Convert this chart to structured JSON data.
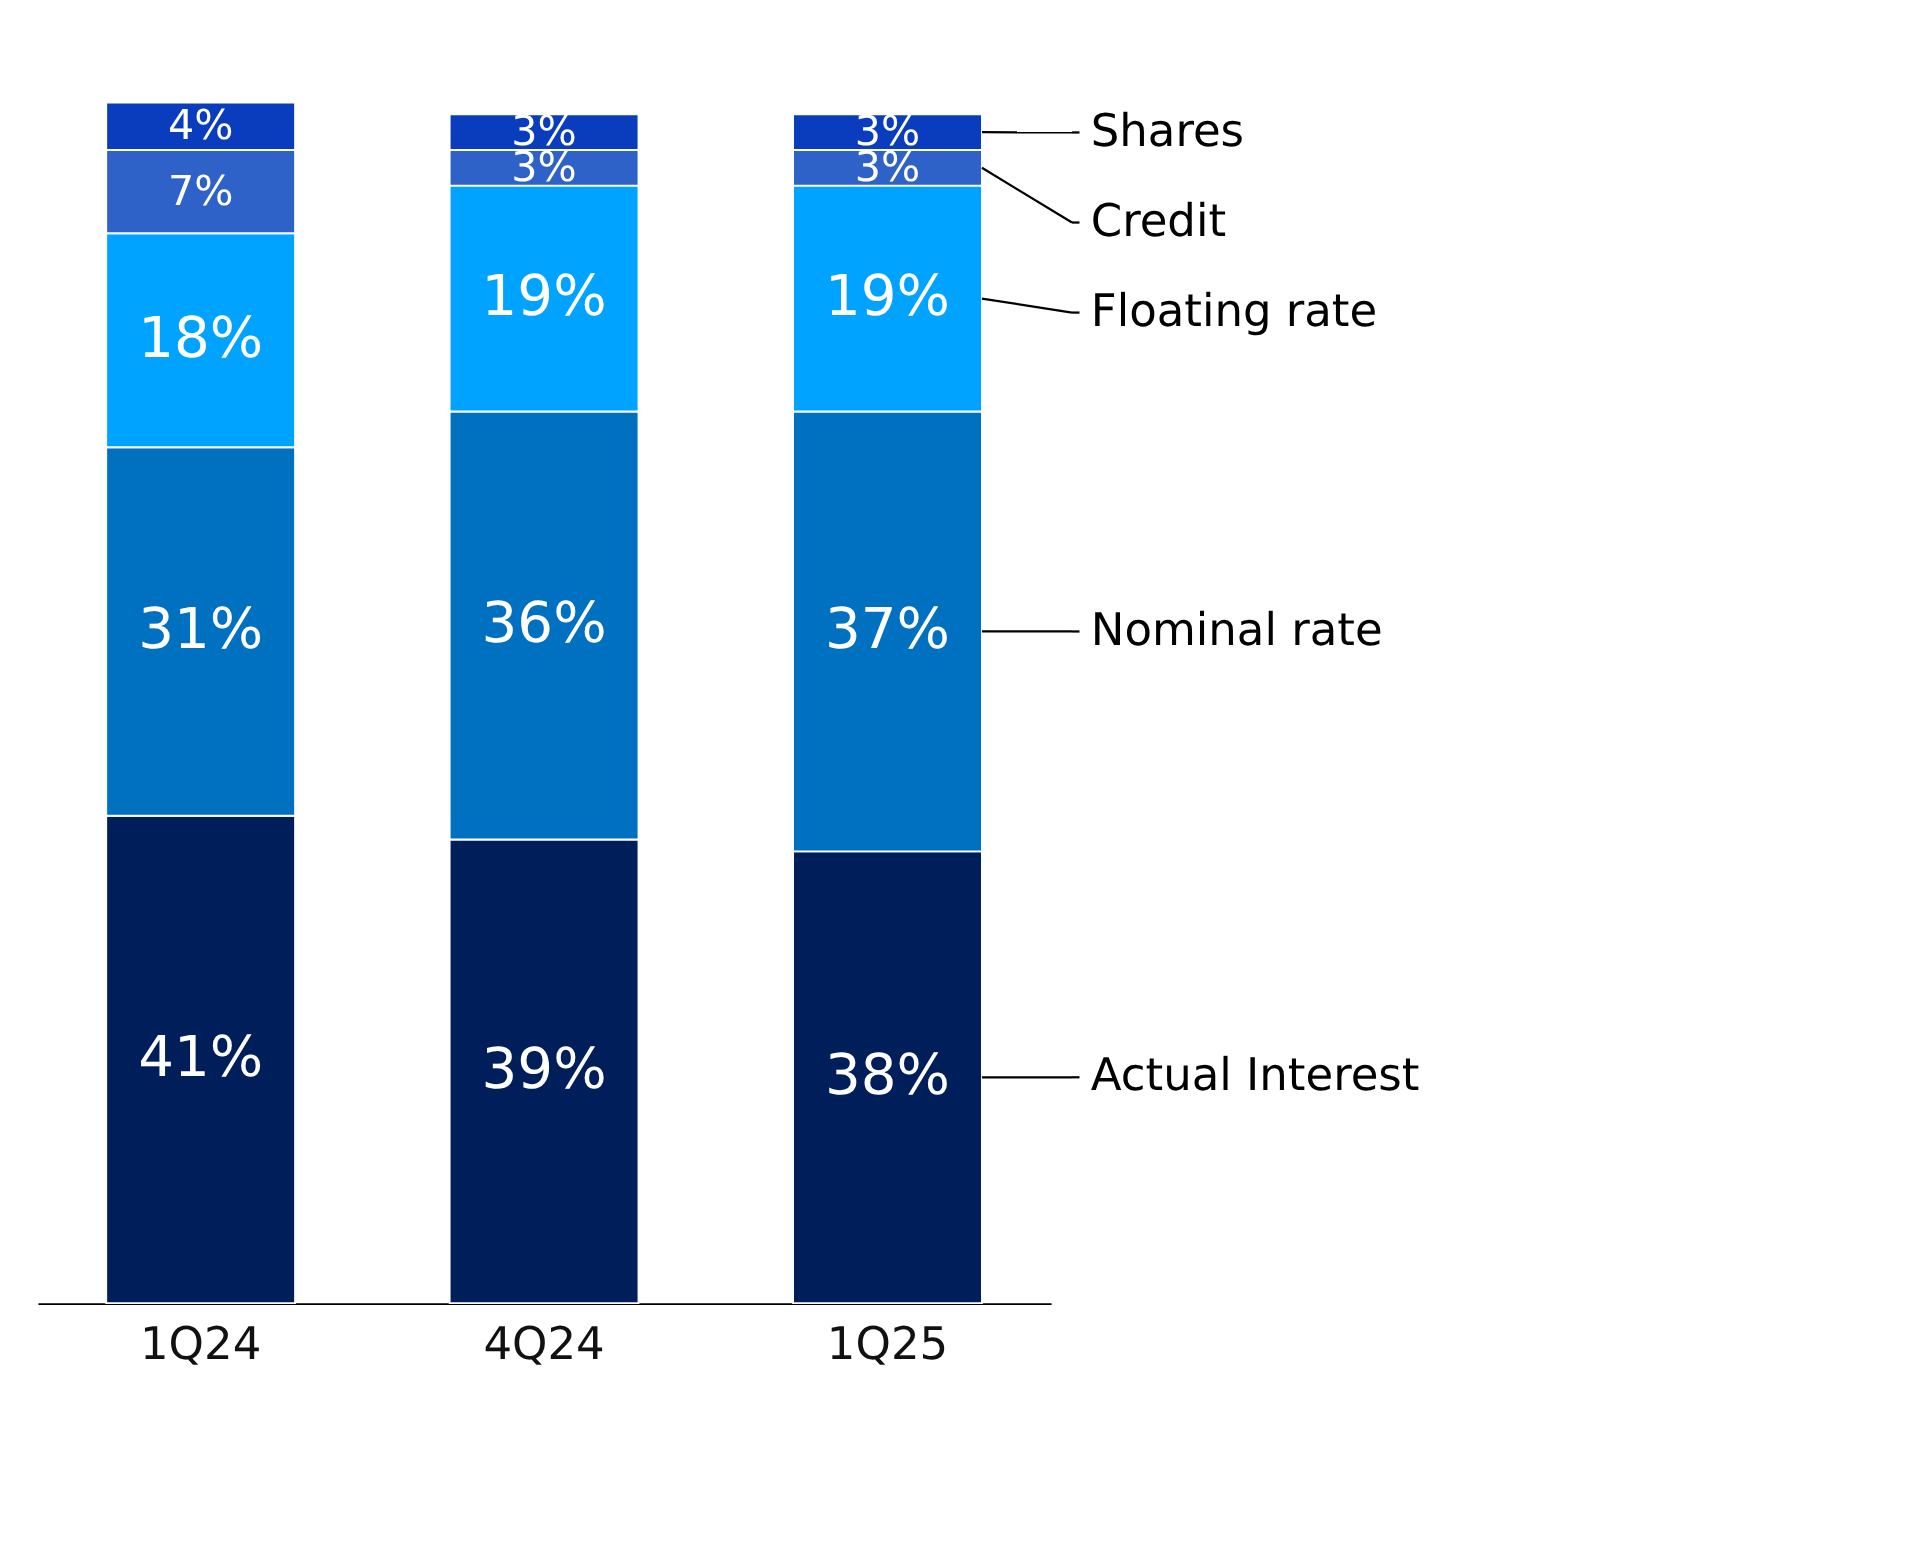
{
  "chart_data": {
    "type": "bar",
    "stacked": true,
    "legend": false,
    "categories": [
      "1Q24",
      "4Q24",
      "1Q25"
    ],
    "series": [
      {
        "name": "Actual Interest",
        "color": "#001e5a",
        "values": [
          41,
          39,
          38
        ],
        "value_labels": [
          "41%",
          "39%",
          "38%"
        ]
      },
      {
        "name": "Nominal rate",
        "color": "#0070c0",
        "values": [
          31,
          36,
          37
        ],
        "value_labels": [
          "31%",
          "36%",
          "37%"
        ]
      },
      {
        "name": "Floating rate",
        "color": "#00a3ff",
        "values": [
          18,
          19,
          19
        ],
        "value_labels": [
          "18%",
          "19%",
          "19%"
        ]
      },
      {
        "name": "Credit",
        "color": "#2e62c8",
        "values": [
          7,
          3,
          3
        ],
        "value_labels": [
          "7%",
          "3%",
          "3%"
        ]
      },
      {
        "name": "Shares",
        "color": "#0a3cbe",
        "values": [
          4,
          3,
          3
        ],
        "value_labels": [
          "4%",
          "3%",
          "3%"
        ]
      }
    ]
  }
}
